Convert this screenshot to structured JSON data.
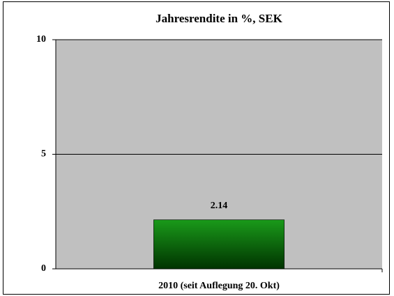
{
  "chart_data": {
    "type": "bar",
    "title": "Jahresrendite in %, SEK",
    "categories": [
      "2010 (seit Auflegung 20. Okt)"
    ],
    "values": [
      2.14
    ],
    "color": "#1a9a1a",
    "ylim": [
      0,
      10
    ],
    "yticks": [
      0,
      5,
      10
    ],
    "grid": true
  }
}
